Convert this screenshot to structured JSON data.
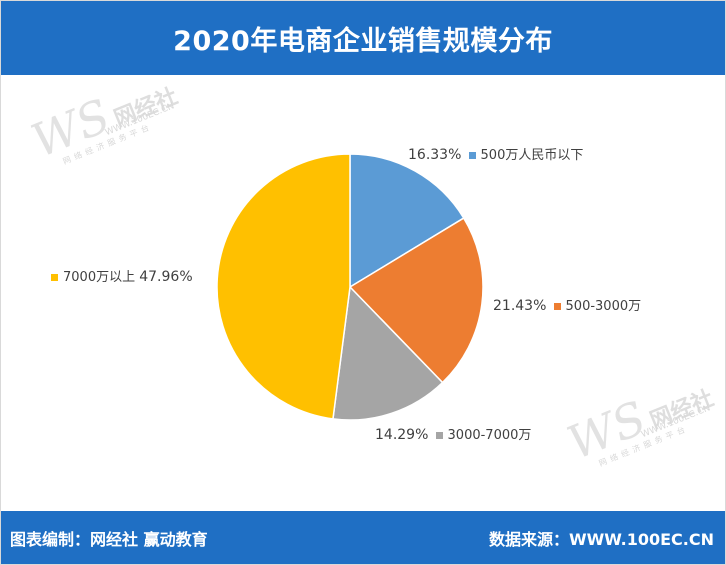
{
  "title": "2020年电商企业销售规模分布",
  "footer": {
    "left": "图表编制：网经社  赢动教育",
    "right": "数据来源：WWW.100EC.CN"
  },
  "watermark": {
    "logo": "WS",
    "name": "网经社",
    "url": "WWW.100EC.CN",
    "sub": "网络经济服务平台"
  },
  "chart_data": {
    "type": "pie",
    "start_angle_deg": 0,
    "direction": "clockwise",
    "slices": [
      {
        "label": "500万人民币以下",
        "value": 16.33,
        "pct_label": "16.33%",
        "color": "#5b9bd5"
      },
      {
        "label": "500-3000万",
        "value": 21.43,
        "pct_label": "21.43%",
        "color": "#ed7d31"
      },
      {
        "label": "3000-7000万",
        "value": 14.29,
        "pct_label": "14.29%",
        "color": "#a5a5a5"
      },
      {
        "label": "7000万以上",
        "value": 47.96,
        "pct_label": "47.96%",
        "color": "#ffc000"
      }
    ]
  }
}
